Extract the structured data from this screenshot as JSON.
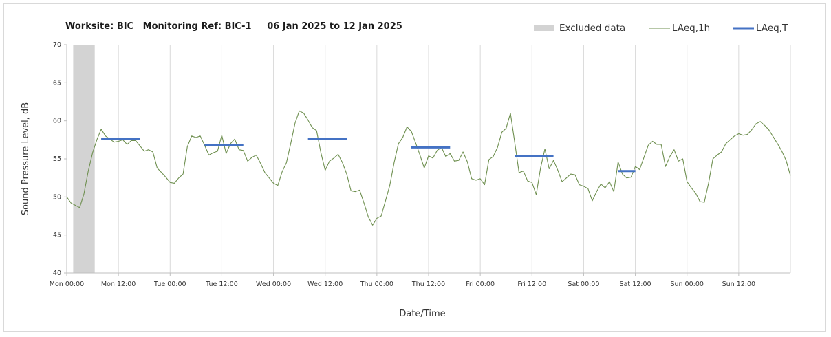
{
  "chart_data": {
    "type": "line",
    "title": "Worksite: BIC   Monitoring Ref: BIC-1     06 Jan 2025 to 12 Jan 2025",
    "xlabel": "Date/Time",
    "ylabel": "Sound Pressure Level, dB",
    "ylim": [
      40,
      70
    ],
    "y_ticks": [
      "40",
      "45",
      "50",
      "55",
      "60",
      "65",
      "70"
    ],
    "y_tick_values": [
      40,
      45,
      50,
      55,
      60,
      65,
      70
    ],
    "x_range_hours": [
      0,
      168
    ],
    "x_ticks": [
      "Mon 00:00",
      "Mon 12:00",
      "Tue 00:00",
      "Tue 12:00",
      "Wed 00:00",
      "Wed 12:00",
      "Thu 00:00",
      "Thu 12:00",
      "Fri 00:00",
      "Fri 12:00",
      "Sat 00:00",
      "Sat 12:00",
      "Sun 00:00",
      "Sun 12:00"
    ],
    "x_tick_hours": [
      0,
      12,
      24,
      36,
      48,
      60,
      72,
      84,
      96,
      108,
      120,
      132,
      144,
      156
    ],
    "grid": "vertical",
    "legend": {
      "position": "top-right",
      "items": [
        "Excluded data",
        "LAeq,1h",
        "LAeq,T"
      ]
    },
    "excluded_ranges": [
      {
        "from_hour": 1.5,
        "to_hour": 6.5
      }
    ],
    "series": [
      {
        "name": "LAeq,1h",
        "color": "#6e8f4f",
        "x_hours": [
          0,
          1,
          2,
          3,
          4,
          5,
          6,
          7,
          8,
          9,
          10,
          11,
          12,
          13,
          14,
          15,
          16,
          17,
          18,
          19,
          20,
          21,
          22,
          23,
          24,
          25,
          26,
          27,
          28,
          29,
          30,
          31,
          32,
          33,
          34,
          35,
          36,
          37,
          38,
          39,
          40,
          41,
          42,
          43,
          44,
          45,
          46,
          47,
          48,
          49,
          50,
          51,
          52,
          53,
          54,
          55,
          56,
          57,
          58,
          59,
          60,
          61,
          62,
          63,
          64,
          65,
          66,
          67,
          68,
          69,
          70,
          71,
          72,
          73,
          74,
          75,
          76,
          77,
          78,
          79,
          80,
          81,
          82,
          83,
          84,
          85,
          86,
          87,
          88,
          89,
          90,
          91,
          92,
          93,
          94,
          95,
          96,
          97,
          98,
          99,
          100,
          101,
          102,
          103,
          104,
          105,
          106,
          107,
          108,
          109,
          110,
          111,
          112,
          113,
          114,
          115,
          116,
          117,
          118,
          119,
          120,
          121,
          122,
          123,
          124,
          125,
          126,
          127,
          128,
          129,
          130,
          131,
          132,
          133,
          134,
          135,
          136,
          137,
          138,
          139,
          140,
          141,
          142,
          143,
          144,
          145,
          146,
          147,
          148,
          149,
          150,
          151,
          152,
          153,
          154,
          155,
          156,
          157,
          158,
          159,
          160,
          161,
          162,
          163,
          164,
          165,
          166,
          167,
          168
        ],
        "values": [
          50,
          49.2,
          48.9,
          48.6,
          50.4,
          53.4,
          55.8,
          57.5,
          58.9,
          58,
          57.6,
          57.2,
          57.3,
          57.5,
          56.9,
          57.4,
          57.4,
          56.7,
          56,
          56.2,
          55.9,
          53.8,
          53.2,
          52.6,
          51.9,
          51.8,
          52.5,
          53,
          56.6,
          58,
          57.8,
          58,
          56.8,
          55.5,
          55.8,
          56,
          58.1,
          55.7,
          57,
          57.6,
          56.2,
          56.1,
          54.7,
          55.2,
          55.5,
          54.4,
          53.2,
          52.5,
          51.8,
          51.5,
          53.3,
          54.5,
          57,
          59.7,
          61.3,
          61,
          60.1,
          59.1,
          58.7,
          55.8,
          53.5,
          54.7,
          55.1,
          55.6,
          54.5,
          53,
          50.8,
          50.7,
          50.9,
          49.2,
          47.4,
          46.3,
          47.2,
          47.5,
          49.5,
          51.5,
          54.5,
          57,
          57.8,
          59.2,
          58.6,
          57.1,
          55.5,
          53.8,
          55.4,
          55.1,
          56.1,
          56.5,
          55.3,
          55.7,
          54.7,
          54.8,
          55.9,
          54.6,
          52.4,
          52.2,
          52.4,
          51.6,
          54.9,
          55.3,
          56.5,
          58.5,
          59,
          61,
          57.2,
          53.2,
          53.4,
          52.1,
          51.9,
          50.3,
          53.8,
          56.3,
          53.7,
          54.8,
          53.5,
          52,
          52.5,
          53,
          52.9,
          51.6,
          51.4,
          51.1,
          49.5,
          50.7,
          51.7,
          51.2,
          52,
          50.7,
          54.6,
          53,
          52.5,
          52.6,
          54,
          53.6,
          55.2,
          56.8,
          57.3,
          56.9,
          56.9,
          54,
          55.3,
          56.2,
          54.7,
          55,
          52,
          51.2,
          50.5,
          49.4,
          49.3,
          51.8,
          55,
          55.5,
          55.9,
          57,
          57.5,
          58,
          58.3,
          58.1,
          58.2,
          58.8,
          59.6,
          59.9,
          59.4,
          58.8,
          57.9,
          57,
          56,
          54.8,
          52.8
        ]
      },
      {
        "name": "LAeq,T",
        "color": "#4472c4",
        "segments": [
          {
            "from_hour": 8,
            "to_hour": 17,
            "value": 57.6
          },
          {
            "from_hour": 32,
            "to_hour": 41,
            "value": 56.8
          },
          {
            "from_hour": 56,
            "to_hour": 65,
            "value": 57.6
          },
          {
            "from_hour": 80,
            "to_hour": 89,
            "value": 56.5
          },
          {
            "from_hour": 104,
            "to_hour": 113,
            "value": 55.4
          },
          {
            "from_hour": 128,
            "to_hour": 132,
            "value": 53.4
          }
        ]
      }
    ]
  },
  "colors": {
    "excluded": "#d3d3d3",
    "grid": "#d9d9d9",
    "axis": "#bfbfbf"
  }
}
